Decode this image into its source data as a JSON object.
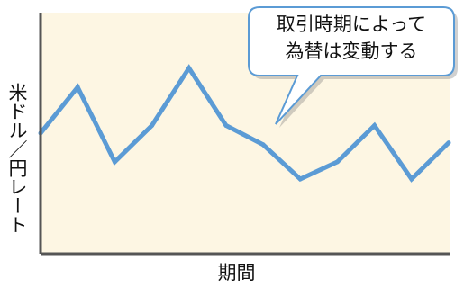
{
  "chart_data": {
    "type": "line",
    "title": "",
    "xlabel": "期間",
    "ylabel": "米ドル／円レート",
    "annotation": {
      "line1": "取引時期によって",
      "line2": "為替は変動する"
    },
    "x": [
      0,
      1,
      2,
      3,
      4,
      5,
      6,
      7,
      8,
      9,
      10,
      11
    ],
    "series": [
      {
        "values": [
          63,
          87,
          48,
          67,
          97,
          67,
          57,
          39,
          48,
          67,
          39,
          58
        ]
      }
    ],
    "ylim": [
      0,
      126
    ],
    "xlim": [
      0,
      11
    ],
    "grid": false,
    "colors": {
      "line": "#5b9bd5",
      "plot_bg": "#fdf6e3",
      "axis": "#555555"
    }
  }
}
